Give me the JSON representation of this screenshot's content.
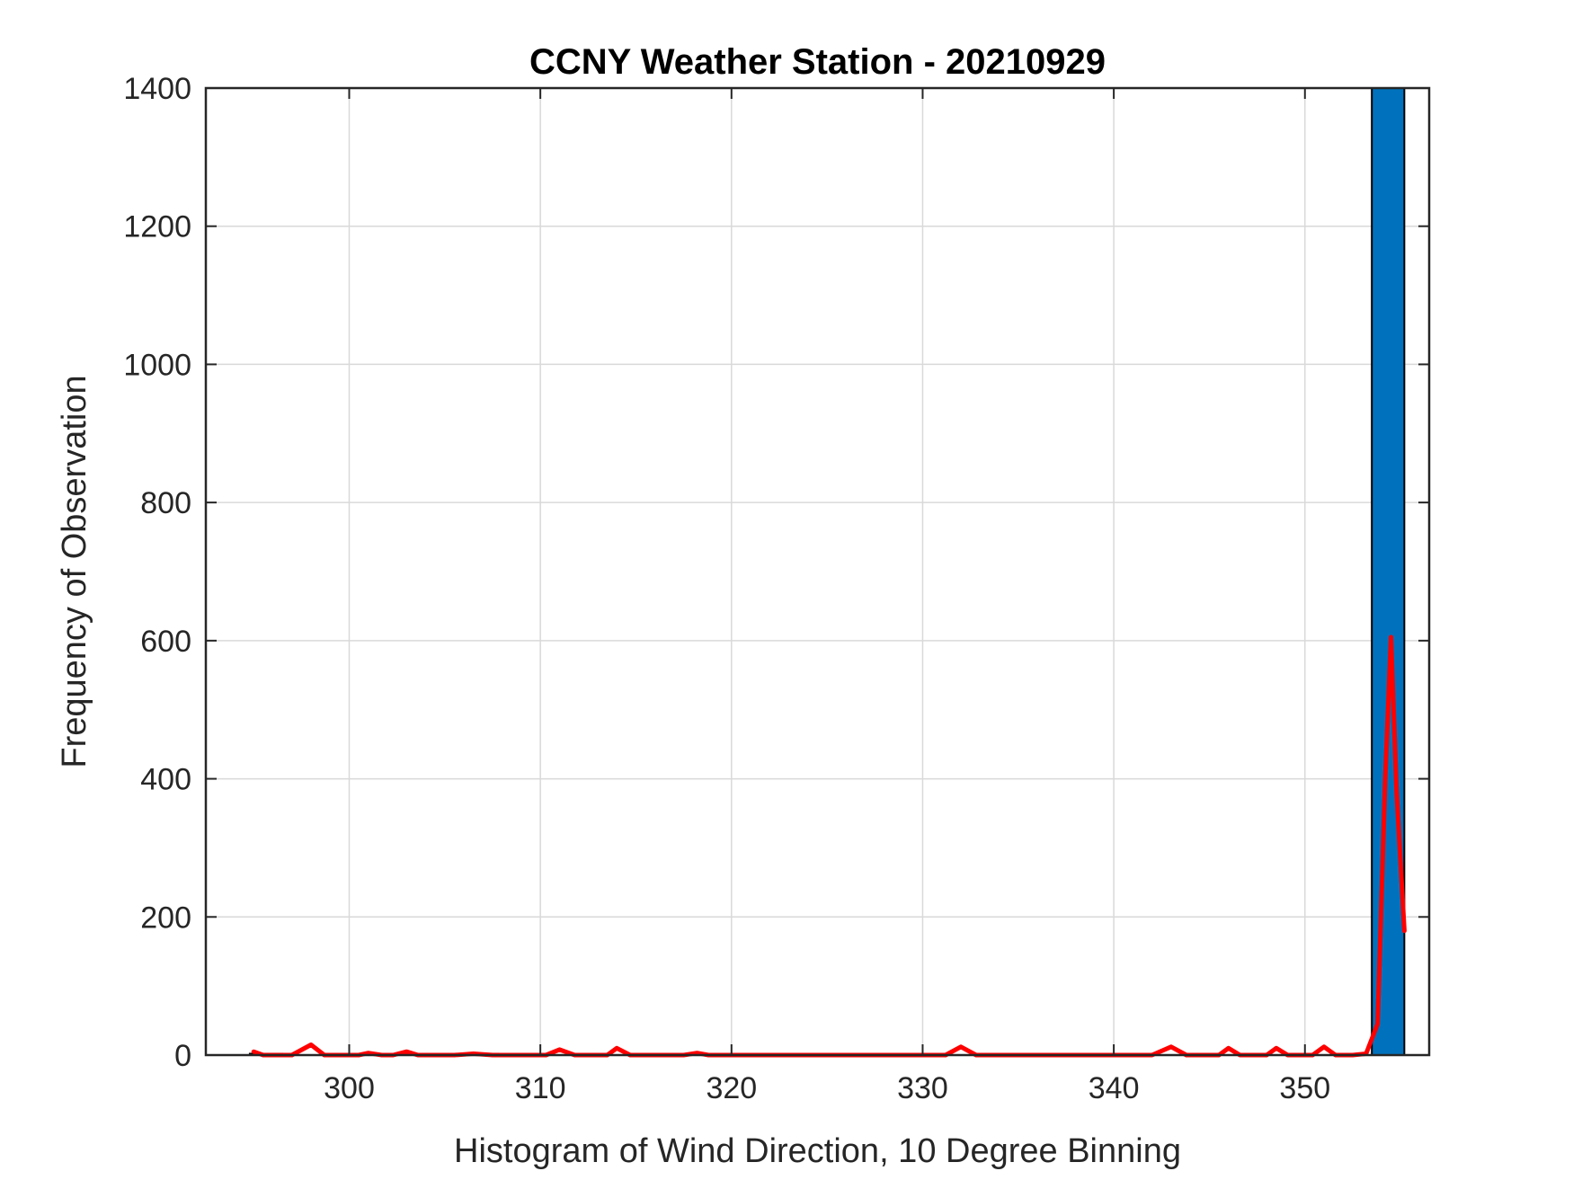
{
  "chart_data": {
    "type": "bar",
    "title": "CCNY Weather Station - 20210929",
    "xlabel": "Histogram of Wind Direction, 10 Degree Binning",
    "ylabel": "Frequency of Observation",
    "xlim": [
      292.5,
      356.5
    ],
    "ylim": [
      0,
      1400
    ],
    "xticks": [
      300,
      310,
      320,
      330,
      340,
      350
    ],
    "yticks": [
      0,
      200,
      400,
      600,
      800,
      1000,
      1200,
      1400
    ],
    "grid": true,
    "bars": [
      {
        "x0": 294.8,
        "x1": 296.5,
        "value": 2
      },
      {
        "x0": 306.0,
        "x1": 307.8,
        "value": 2
      },
      {
        "x0": 353.5,
        "x1": 355.2,
        "value": 1400
      }
    ],
    "line": {
      "x": [
        295.0,
        295.5,
        296.0,
        297.0,
        298.0,
        298.7,
        299.5,
        300.5,
        301.0,
        301.7,
        302.3,
        303.0,
        303.6,
        304.5,
        305.5,
        306.5,
        307.5,
        308.5,
        309.5,
        310.3,
        311.0,
        311.8,
        312.8,
        313.5,
        314.0,
        314.7,
        315.5,
        316.5,
        317.5,
        318.2,
        318.8,
        319.5,
        320.5,
        322.0,
        324.0,
        326.0,
        328.0,
        330.0,
        331.2,
        332.0,
        332.8,
        334.0,
        336.0,
        338.0,
        340.0,
        342.0,
        343.0,
        343.8,
        345.0,
        345.5,
        346.0,
        346.6,
        347.5,
        348.0,
        348.5,
        349.1,
        350.0,
        350.4,
        351.0,
        351.6,
        352.5,
        353.2,
        353.8,
        354.2,
        354.5,
        354.8,
        355.2
      ],
      "y": [
        5,
        0,
        0,
        0,
        15,
        0,
        0,
        0,
        3,
        0,
        0,
        5,
        0,
        0,
        0,
        2,
        0,
        0,
        0,
        0,
        8,
        0,
        0,
        0,
        10,
        0,
        0,
        0,
        0,
        3,
        0,
        0,
        0,
        0,
        0,
        0,
        0,
        0,
        0,
        12,
        0,
        0,
        0,
        0,
        0,
        0,
        12,
        0,
        0,
        0,
        10,
        0,
        0,
        0,
        10,
        0,
        0,
        0,
        12,
        0,
        0,
        2,
        45,
        400,
        605,
        380,
        180
      ],
      "color": "#ff0000"
    },
    "colors": {
      "bar_fill": "#0072bd",
      "bar_edge": "#000000",
      "line": "#ff0000",
      "grid": "#d9d9d9",
      "axis": "#262626"
    }
  }
}
